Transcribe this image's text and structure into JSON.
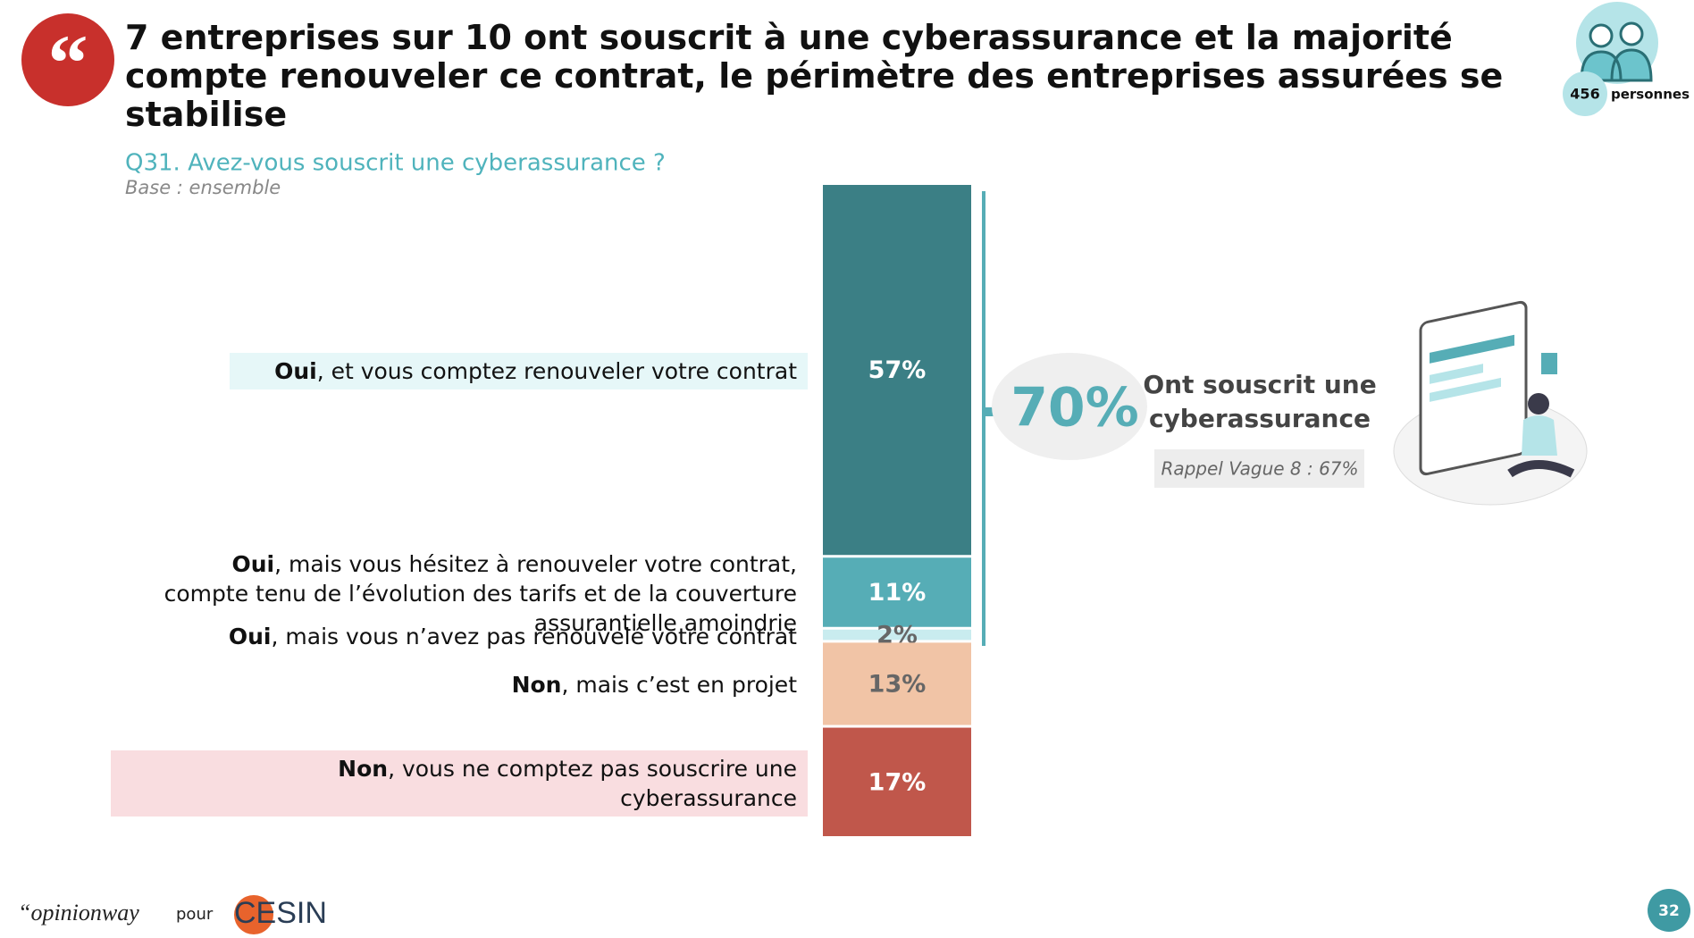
{
  "header": {
    "title": "7 entreprises sur 10 ont souscrit à une cyberassurance et la majorité compte renouveler ce contrat, le périmètre des entreprises assurées se stabilise",
    "sample_size": "456",
    "sample_unit": "personnes"
  },
  "chart_data": {
    "type": "stacked_bar",
    "question": "Q31. Avez-vous souscrit une cyberassurance ?",
    "base": "Base : ensemble",
    "categories": [
      "Oui, et vous comptez renouveler votre contrat",
      "Oui, mais vous hésitez à renouveler votre contrat, compte tenu de l’évolution des tarifs et de la couverture assurantielle amoindrie",
      "Oui, mais vous n’avez pas renouvelé votre contrat",
      "Non, mais c’est en projet",
      "Non, vous ne comptez pas souscrire une cyberassurance"
    ],
    "values": [
      57,
      11,
      2,
      13,
      17
    ],
    "value_labels": [
      "57%",
      "11%",
      "2%",
      "13%",
      "17%"
    ],
    "colors": [
      "#3b7f85",
      "#56adb6",
      "#c9ecef",
      "#f1c4a6",
      "#c0574b"
    ],
    "value_label_colors": [
      "#ffffff",
      "#ffffff",
      "#666666",
      "#666666",
      "#ffffff"
    ],
    "label_backgrounds": [
      "#e6f7f8",
      null,
      null,
      null,
      "#f9dde0"
    ],
    "ylim": [
      0,
      100
    ],
    "callout": {
      "value": 70,
      "label": "70%",
      "text": [
        "Ont souscrit une",
        "cyberassurance"
      ],
      "recall": "Rappel Vague 8 : 67%"
    }
  },
  "footer": {
    "brand": "“opinionway",
    "for": "pour",
    "client": "CESIN",
    "page": "32"
  }
}
